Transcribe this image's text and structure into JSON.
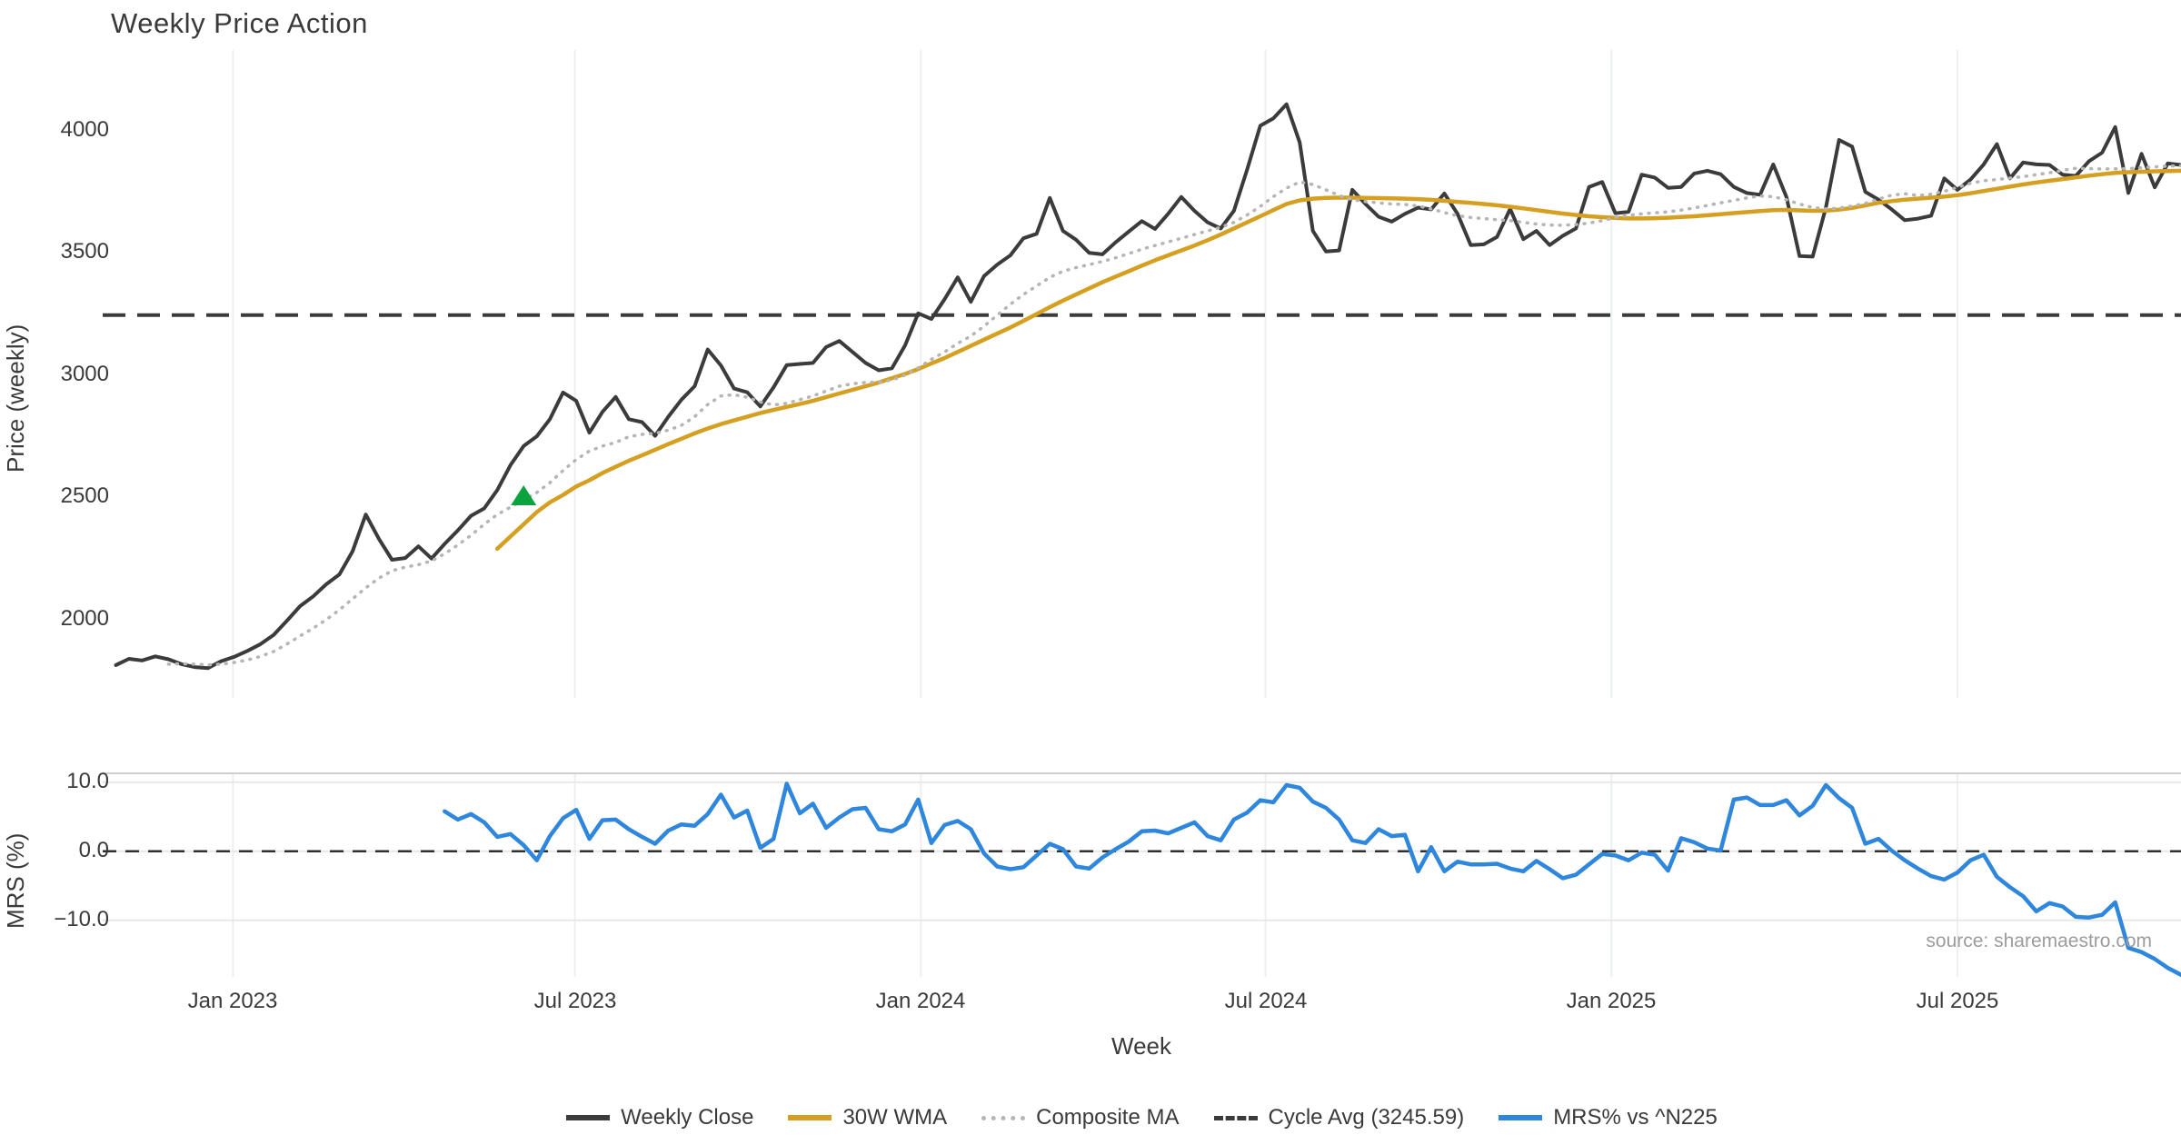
{
  "title": "Weekly Price Action",
  "xlabel": "Week",
  "source": "source: sharemaestro.com",
  "price_panel": {
    "ylabel": "Price (weekly)",
    "yticks": [
      {
        "label": "2000",
        "value": 2000
      },
      {
        "label": "2500",
        "value": 2500
      },
      {
        "label": "3000",
        "value": 3000
      },
      {
        "label": "3500",
        "value": 3500
      },
      {
        "label": "4000",
        "value": 4000
      }
    ]
  },
  "mrs_panel": {
    "ylabel": "MRS (%)",
    "yticks": [
      {
        "label": "10.0",
        "value": 10
      },
      {
        "label": "0.0",
        "value": 0
      },
      {
        "label": "−10.0",
        "value": -10
      }
    ]
  },
  "xticks": [
    {
      "label": "Jan 2023",
      "week": 8.9
    },
    {
      "label": "Jul 2023",
      "week": 34.9
    },
    {
      "label": "Jan 2024",
      "week": 61.2
    },
    {
      "label": "Jul 2024",
      "week": 87.4
    },
    {
      "label": "Jan 2025",
      "week": 113.7
    },
    {
      "label": "Jul 2025",
      "week": 140.0
    }
  ],
  "legend": [
    {
      "label": "Weekly Close",
      "color": "#3b3b3b",
      "style": "solid"
    },
    {
      "label": "30W WMA",
      "color": "#d5a021",
      "style": "solid"
    },
    {
      "label": "Composite MA",
      "color": "#b5b5b5",
      "style": "dotted"
    },
    {
      "label": "Cycle Avg (3245.59)",
      "color": "#3b3b3b",
      "style": "dashed"
    },
    {
      "label": "MRS% vs ^N225",
      "color": "#2e86dd",
      "style": "solid"
    }
  ],
  "colors": {
    "close": "#3b3b3b",
    "wma": "#d5a021",
    "composite": "#b5b5b5",
    "cycle": "#3b3b3b",
    "mrs": "#2e86dd",
    "marker": "#0aa33f",
    "grid_v": "#eceff2",
    "grid_h": "#e8e8e8",
    "spine": "#cfcfcf",
    "zero": "#2f2f2f",
    "source": "#9c9c9c"
  },
  "chart_data": [
    {
      "type": "line",
      "panel": "price",
      "title": "Weekly Price Action",
      "ylabel": "Price (weekly)",
      "x_unit": "weeks since 2022-10-31",
      "xlim": [
        -1,
        157
      ],
      "ylim": [
        1680,
        4330
      ],
      "cycle_avg": 3245.59,
      "buy_marker": {
        "week": 31,
        "price": 2505,
        "shape": "triangle-up",
        "color": "#0aa33f"
      },
      "series": [
        {
          "name": "Weekly Close",
          "start_week": 0,
          "values": [
            1814,
            1840,
            1833,
            1850,
            1838,
            1818,
            1806,
            1802,
            1830,
            1848,
            1872,
            1900,
            1938,
            1995,
            2055,
            2095,
            2145,
            2185,
            2280,
            2430,
            2330,
            2245,
            2252,
            2300,
            2250,
            2310,
            2365,
            2425,
            2455,
            2530,
            2632,
            2710,
            2750,
            2820,
            2929,
            2895,
            2765,
            2850,
            2911,
            2820,
            2808,
            2752,
            2830,
            2900,
            2955,
            3105,
            3040,
            2945,
            2930,
            2872,
            2950,
            3041,
            3046,
            3050,
            3115,
            3140,
            3095,
            3050,
            3020,
            3028,
            3122,
            3253,
            3230,
            3310,
            3400,
            3300,
            3405,
            3452,
            3490,
            3560,
            3578,
            3725,
            3590,
            3554,
            3500,
            3494,
            3543,
            3587,
            3630,
            3598,
            3660,
            3729,
            3672,
            3625,
            3600,
            3672,
            3840,
            4020,
            4050,
            4108,
            3952,
            3590,
            3506,
            3510,
            3758,
            3700,
            3648,
            3628,
            3660,
            3685,
            3678,
            3743,
            3660,
            3532,
            3535,
            3565,
            3680,
            3556,
            3590,
            3532,
            3570,
            3600,
            3770,
            3790,
            3662,
            3668,
            3820,
            3808,
            3766,
            3770,
            3825,
            3836,
            3822,
            3770,
            3745,
            3738,
            3862,
            3729,
            3487,
            3485,
            3685,
            3962,
            3935,
            3750,
            3718,
            3678,
            3634,
            3640,
            3652,
            3805,
            3758,
            3800,
            3862,
            3945,
            3805,
            3870,
            3862,
            3860,
            3820,
            3815,
            3875,
            3910,
            4015,
            3745,
            3905,
            3768,
            3866,
            3860
          ]
        },
        {
          "name": "30W WMA",
          "start_week": 29,
          "values": [
            2290,
            2340,
            2390,
            2440,
            2480,
            2510,
            2545,
            2570,
            2600,
            2625,
            2650,
            2672,
            2695,
            2718,
            2740,
            2762,
            2782,
            2800,
            2815,
            2830,
            2845,
            2858,
            2870,
            2882,
            2895,
            2910,
            2925,
            2940,
            2955,
            2970,
            2988,
            3005,
            3025,
            3048,
            3070,
            3095,
            3120,
            3145,
            3170,
            3195,
            3222,
            3250,
            3278,
            3305,
            3330,
            3355,
            3380,
            3403,
            3425,
            3448,
            3470,
            3490,
            3510,
            3530,
            3552,
            3575,
            3600,
            3625,
            3650,
            3675,
            3700,
            3715,
            3722,
            3725,
            3726,
            3726,
            3725,
            3724,
            3723,
            3722,
            3720,
            3717,
            3713,
            3709,
            3705,
            3700,
            3695,
            3689,
            3682,
            3675,
            3668,
            3661,
            3655,
            3650,
            3646,
            3643,
            3641,
            3641,
            3642,
            3644,
            3647,
            3650,
            3654,
            3658,
            3663,
            3667,
            3671,
            3675,
            3676,
            3674,
            3672,
            3673,
            3677,
            3684,
            3694,
            3705,
            3712,
            3718,
            3722,
            3726,
            3730,
            3736,
            3744,
            3753,
            3762,
            3771,
            3780,
            3788,
            3795,
            3802,
            3809,
            3816,
            3822,
            3827,
            3830,
            3832,
            3834,
            3835,
            3836
          ]
        },
        {
          "name": "Composite MA",
          "start_week": 4,
          "values": [
            1818,
            1820,
            1818,
            1815,
            1818,
            1825,
            1835,
            1850,
            1870,
            1900,
            1933,
            1965,
            2000,
            2040,
            2085,
            2130,
            2170,
            2200,
            2215,
            2225,
            2240,
            2270,
            2305,
            2345,
            2390,
            2430,
            2460,
            2490,
            2520,
            2560,
            2610,
            2655,
            2690,
            2710,
            2725,
            2748,
            2758,
            2762,
            2775,
            2795,
            2830,
            2880,
            2915,
            2920,
            2910,
            2890,
            2878,
            2885,
            2900,
            2915,
            2935,
            2955,
            2965,
            2970,
            2972,
            2980,
            3000,
            3030,
            3065,
            3095,
            3130,
            3160,
            3200,
            3245,
            3290,
            3330,
            3365,
            3400,
            3425,
            3440,
            3452,
            3465,
            3480,
            3497,
            3515,
            3530,
            3545,
            3560,
            3575,
            3590,
            3605,
            3625,
            3655,
            3690,
            3730,
            3765,
            3790,
            3780,
            3758,
            3735,
            3718,
            3710,
            3705,
            3700,
            3698,
            3692,
            3680,
            3665,
            3652,
            3645,
            3640,
            3636,
            3632,
            3625,
            3618,
            3614,
            3613,
            3616,
            3622,
            3632,
            3645,
            3654,
            3660,
            3664,
            3668,
            3675,
            3684,
            3694,
            3705,
            3715,
            3725,
            3733,
            3730,
            3717,
            3700,
            3686,
            3680,
            3683,
            3692,
            3703,
            3720,
            3736,
            3742,
            3735,
            3740,
            3752,
            3768,
            3785,
            3795,
            3800,
            3806,
            3812,
            3820,
            3828,
            3838,
            3846,
            3845,
            3843,
            3844,
            3845,
            3848,
            3852,
            3855,
            3857
          ]
        }
      ]
    },
    {
      "type": "line",
      "panel": "mrs",
      "ylabel": "MRS (%)",
      "x_unit": "weeks since 2022-10-31",
      "xlim": [
        -1,
        157
      ],
      "ylim": [
        -18.2,
        11.3
      ],
      "zero_line": 0,
      "series": [
        {
          "name": "MRS% vs ^N225",
          "start_week": 25,
          "values": [
            5.8,
            4.6,
            5.4,
            4.2,
            2.1,
            2.5,
            0.9,
            -1.3,
            2.2,
            4.8,
            6.0,
            1.8,
            4.5,
            4.6,
            3.2,
            2.1,
            1.1,
            3.0,
            3.9,
            3.7,
            5.4,
            8.2,
            4.9,
            5.9,
            0.5,
            1.8,
            9.8,
            5.5,
            6.9,
            3.4,
            4.9,
            6.1,
            6.3,
            3.2,
            2.9,
            3.9,
            7.5,
            1.2,
            3.8,
            4.4,
            3.2,
            -0.3,
            -2.2,
            -2.6,
            -2.3,
            -0.6,
            1.1,
            0.3,
            -2.2,
            -2.5,
            -0.9,
            0.3,
            1.4,
            2.9,
            3.0,
            2.6,
            3.4,
            4.2,
            2.2,
            1.6,
            4.6,
            5.6,
            7.4,
            7.1,
            9.6,
            9.2,
            7.2,
            6.3,
            4.6,
            1.6,
            1.2,
            3.2,
            2.2,
            2.4,
            -2.9,
            0.6,
            -2.9,
            -1.5,
            -1.9,
            -1.9,
            -1.8,
            -2.5,
            -2.9,
            -1.4,
            -2.6,
            -3.9,
            -3.4,
            -1.9,
            -0.4,
            -0.6,
            -1.3,
            -0.2,
            -0.5,
            -2.8,
            1.9,
            1.3,
            0.4,
            0.1,
            7.5,
            7.8,
            6.7,
            6.7,
            7.4,
            5.2,
            6.6,
            9.6,
            7.7,
            6.3,
            1.1,
            1.8,
            0.1,
            -1.3,
            -2.5,
            -3.6,
            -4.1,
            -3.1,
            -1.3,
            -0.5,
            -3.7,
            -5.2,
            -6.5,
            -8.7,
            -7.5,
            -8.0,
            -9.5,
            -9.6,
            -9.2,
            -7.4,
            -14.0,
            -14.6,
            -15.6,
            -16.9,
            -17.9
          ]
        }
      ]
    }
  ]
}
